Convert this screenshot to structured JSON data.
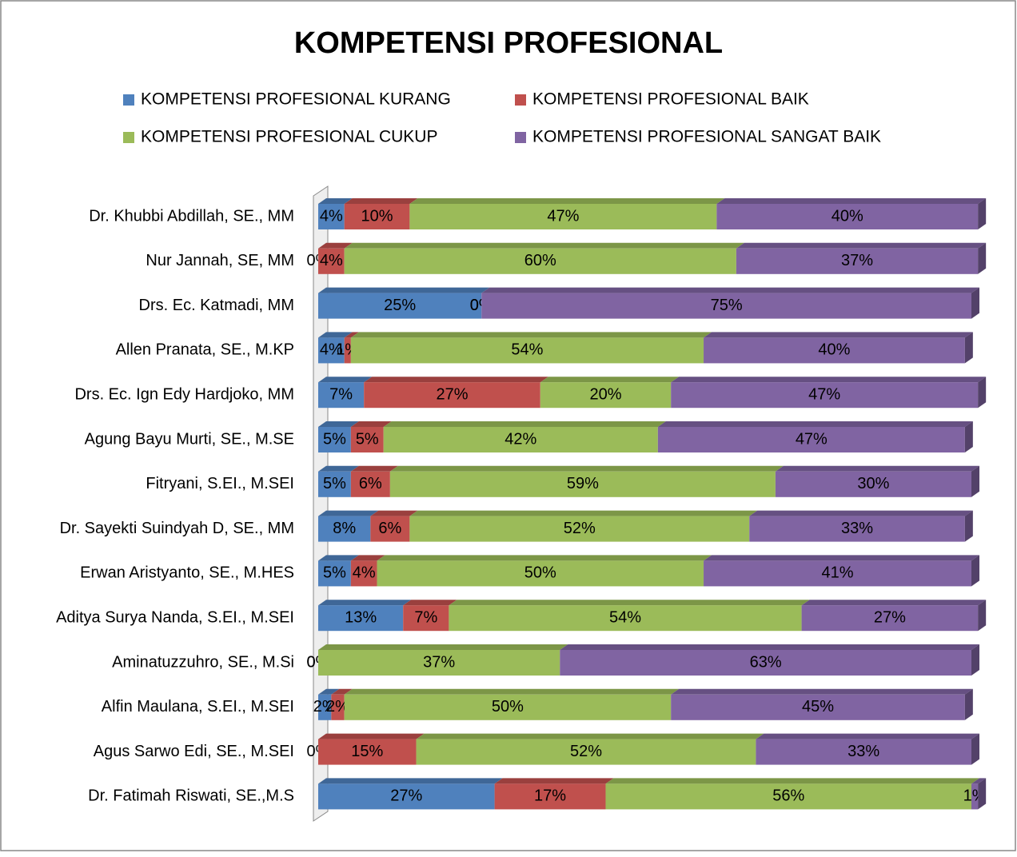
{
  "chart_data": {
    "type": "stacked-bar-horizontal",
    "title": "KOMPETENSI PROFESIONAL",
    "categories": [
      "Dr. Khubbi Abdillah, SE., MM",
      "Nur Jannah, SE, MM",
      "Drs. Ec. Katmadi, MM",
      "Allen Pranata, SE., M.KP",
      "Drs. Ec. Ign Edy Hardjoko, MM",
      "Agung Bayu Murti, SE., M.SE",
      "Fitryani, S.EI., M.SEI",
      "Dr. Sayekti Suindyah D, SE., MM",
      "Erwan Aristyanto, SE., M.HES",
      "Aditya Surya Nanda, S.EI., M.SEI",
      "Aminatuzzuhro, SE., M.Si",
      "Alfin Maulana, S.EI., M.SEI",
      "Agus Sarwo Edi, SE., M.SEI",
      "Dr. Fatimah Riswati, SE.,M.S"
    ],
    "xlim": [
      0,
      100
    ],
    "series": [
      {
        "name": "KOMPETENSI PROFESIONAL  KURANG",
        "color": "#4f81bd",
        "values": [
          4,
          0,
          25,
          4,
          7,
          5,
          5,
          8,
          5,
          13,
          0,
          2,
          0,
          27
        ],
        "value_labels": [
          "4%",
          "0%",
          "25%",
          "4%",
          "7%",
          "5%",
          "5%",
          "8%",
          "5%",
          "13%",
          "0%",
          "2%",
          "0%",
          "27%"
        ]
      },
      {
        "name": "KOMPETENSI PROFESIONAL  BAIK",
        "color": "#c0504d",
        "values": [
          10,
          4,
          0,
          1,
          27,
          5,
          6,
          6,
          4,
          7,
          0,
          2,
          15,
          17
        ],
        "value_labels": [
          "10%",
          "4%",
          "0%",
          "1%",
          "27%",
          "5%",
          "6%",
          "6%",
          "4%",
          "7%",
          "0%",
          "2%",
          "15%",
          "17%"
        ]
      },
      {
        "name": "KOMPETENSI PROFESIONAL  CUKUP",
        "color": "#9bbb59",
        "values": [
          47,
          60,
          0,
          54,
          20,
          42,
          59,
          52,
          50,
          54,
          37,
          50,
          52,
          56
        ],
        "value_labels": [
          "47%",
          "60%",
          "0%",
          "54%",
          "20%",
          "42%",
          "59%",
          "52%",
          "50%",
          "54%",
          "37%",
          "50%",
          "52%",
          "56%"
        ]
      },
      {
        "name": "KOMPETENSI PROFESIONAL  SANGAT BAIK",
        "color": "#8064a2",
        "values": [
          40,
          37,
          75,
          40,
          47,
          47,
          30,
          33,
          41,
          27,
          63,
          45,
          33,
          1
        ],
        "value_labels": [
          "40%",
          "37%",
          "75%",
          "40%",
          "47%",
          "47%",
          "30%",
          "33%",
          "41%",
          "27%",
          "63%",
          "45%",
          "33%",
          "1%"
        ]
      }
    ]
  }
}
